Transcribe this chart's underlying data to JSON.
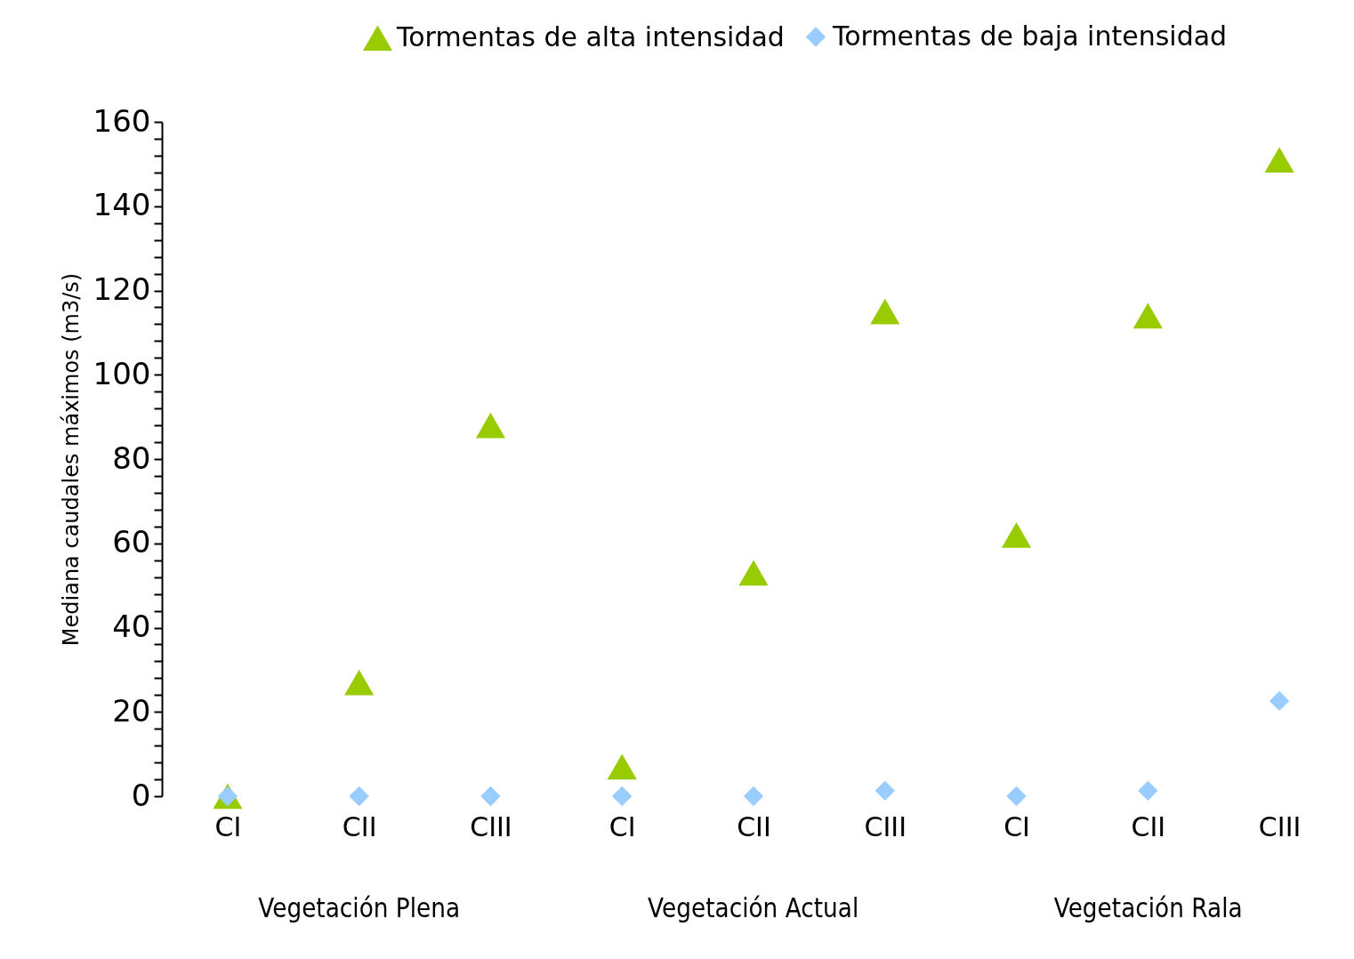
{
  "chart_data": {
    "type": "scatter",
    "ylabel": "Mediana caudales máximos (m3/s)",
    "categories": [
      "CI",
      "CII",
      "CIII",
      "CI",
      "CII",
      "CIII",
      "CI",
      "CII",
      "CIII"
    ],
    "series": [
      {
        "name": "Tormentas de alta intensidad",
        "color": "#99cc00",
        "marker": "triangle",
        "values": [
          0,
          27,
          88,
          7,
          53,
          115,
          62,
          114,
          151
        ]
      },
      {
        "name": "Tormentas de baja intensidad",
        "color": "#99ccff",
        "marker": "diamond",
        "values": [
          0,
          0,
          0,
          0,
          0,
          1.3,
          0,
          1.3,
          22.6
        ]
      }
    ],
    "ylim": [
      0,
      160
    ],
    "yticks": [
      0,
      {
        "value": 4,
        "label": null
      },
      {
        "value": 8,
        "label": null
      },
      {
        "value": 12,
        "label": null
      },
      {
        "value": 16,
        "label": null
      },
      20,
      {
        "value": 24,
        "label": null
      },
      {
        "value": 28,
        "label": null
      },
      {
        "value": 32,
        "label": null
      },
      {
        "value": 36,
        "label": null
      },
      40,
      {
        "value": 44,
        "label": null
      },
      {
        "value": 48,
        "label": null
      },
      {
        "value": 52,
        "label": null
      },
      {
        "value": 56,
        "label": null
      },
      60,
      {
        "value": 64,
        "label": null
      },
      {
        "value": 68,
        "label": null
      },
      {
        "value": 72,
        "label": null
      },
      {
        "value": 76,
        "label": null
      },
      80,
      {
        "value": 84,
        "label": null
      },
      {
        "value": 88,
        "label": null
      },
      {
        "value": 92,
        "label": null
      },
      {
        "value": 96,
        "label": null
      },
      100,
      {
        "value": 104,
        "label": null
      },
      {
        "value": 108,
        "label": null
      },
      {
        "value": 112,
        "label": null
      },
      {
        "value": 116,
        "label": null
      },
      120,
      {
        "value": 124,
        "label": null
      },
      {
        "value": 128,
        "label": null
      },
      {
        "value": 132,
        "label": null
      },
      {
        "value": 136,
        "label": null
      },
      140,
      {
        "value": 144,
        "label": null
      },
      {
        "value": 148,
        "label": null
      },
      {
        "value": 152,
        "label": null
      },
      {
        "value": 156,
        "label": null
      },
      160
    ],
    "annotations": [
      "Vegetación Plena",
      "Vegetación Actual",
      "Vegetación Rala"
    ],
    "grid": false,
    "legend": "top"
  }
}
